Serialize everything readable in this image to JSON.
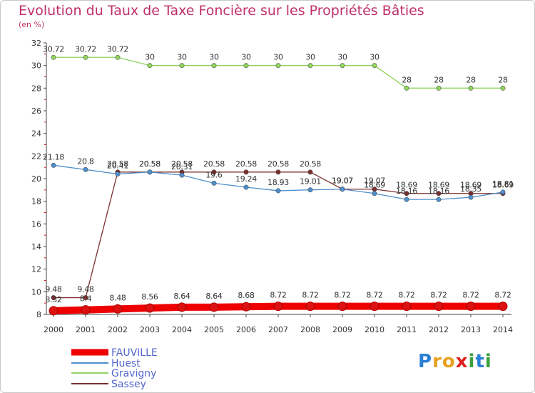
{
  "chart_data": {
    "type": "line",
    "title": "Evolution du Taux de Taxe Foncière sur les Propriétés Bâties",
    "ylabel": "(en %)",
    "xlabel": "",
    "ylim": [
      8,
      32
    ],
    "yticks": [
      "8",
      "10",
      "12",
      "14",
      "16",
      "18",
      "20",
      "22",
      "24",
      "26",
      "28",
      "30",
      "32"
    ],
    "categories": [
      "2000",
      "2001",
      "2002",
      "2003",
      "2004",
      "2005",
      "2006",
      "2007",
      "2008",
      "2009",
      "2010",
      "2011",
      "2012",
      "2013",
      "2014"
    ],
    "series": [
      {
        "name": "FAUVILLE",
        "color": "#ee0000",
        "values": [
          8.32,
          8.4,
          8.48,
          8.56,
          8.64,
          8.64,
          8.68,
          8.72,
          8.72,
          8.72,
          8.72,
          8.72,
          8.72,
          8.72,
          8.72
        ],
        "labels": [
          "8.32",
          "8.4",
          "8.48",
          "8.56",
          "8.64",
          "8.64",
          "8.68",
          "8.72",
          "8.72",
          "8.72",
          "8.72",
          "8.72",
          "8.72",
          "8.72",
          "8.72"
        ]
      },
      {
        "name": "Huest",
        "color": "#4f8fcc",
        "values": [
          21.18,
          20.8,
          20.41,
          20.58,
          20.31,
          19.6,
          19.24,
          18.93,
          19.01,
          19.07,
          18.69,
          18.16,
          18.16,
          18.35,
          18.81
        ],
        "labels": [
          "21.18",
          "20.8",
          "20.41",
          "20.58",
          "20.31",
          "19.6",
          "19.24",
          "18.93",
          "19.01",
          "19.07",
          "18.69",
          "18.16",
          "18.16",
          "18.35",
          "18.81"
        ]
      },
      {
        "name": "Gravigny",
        "color": "#8fd45f",
        "values": [
          30.72,
          30.72,
          30.72,
          30,
          30,
          30,
          30,
          30,
          30,
          30,
          30,
          28,
          28,
          28,
          28
        ],
        "labels": [
          "30.72",
          "30.72",
          "30.72",
          "30",
          "30",
          "30",
          "30",
          "30",
          "30",
          "30",
          "30",
          "28",
          "28",
          "28",
          "28"
        ]
      },
      {
        "name": "Sassey",
        "color": "#7a3030",
        "values": [
          9.48,
          9.48,
          20.58,
          20.58,
          20.58,
          20.58,
          20.58,
          20.58,
          20.58,
          19.07,
          19.07,
          18.69,
          18.69,
          18.69,
          18.69
        ],
        "labels": [
          "9.48",
          "9.48",
          "20.58",
          "20.58",
          "20.58",
          "20.58",
          "20.58",
          "20.58",
          "20.58",
          "19.07",
          "19.07",
          "18.69",
          "18.69",
          "18.69",
          "18.69"
        ]
      }
    ],
    "legend": [
      "FAUVILLE",
      "Huest",
      "Gravigny",
      "Sassey"
    ],
    "legend_position": "bottom-left",
    "grid": false
  },
  "logo": {
    "text": "Proxiti",
    "letters": [
      "P",
      "r",
      "o",
      "x",
      "i",
      "t",
      "i"
    ],
    "colors": [
      "#2a7fd4",
      "#e8a020",
      "#e8a020",
      "#e02020",
      "#3ca03c",
      "#2a7fd4",
      "#3ca03c"
    ]
  }
}
